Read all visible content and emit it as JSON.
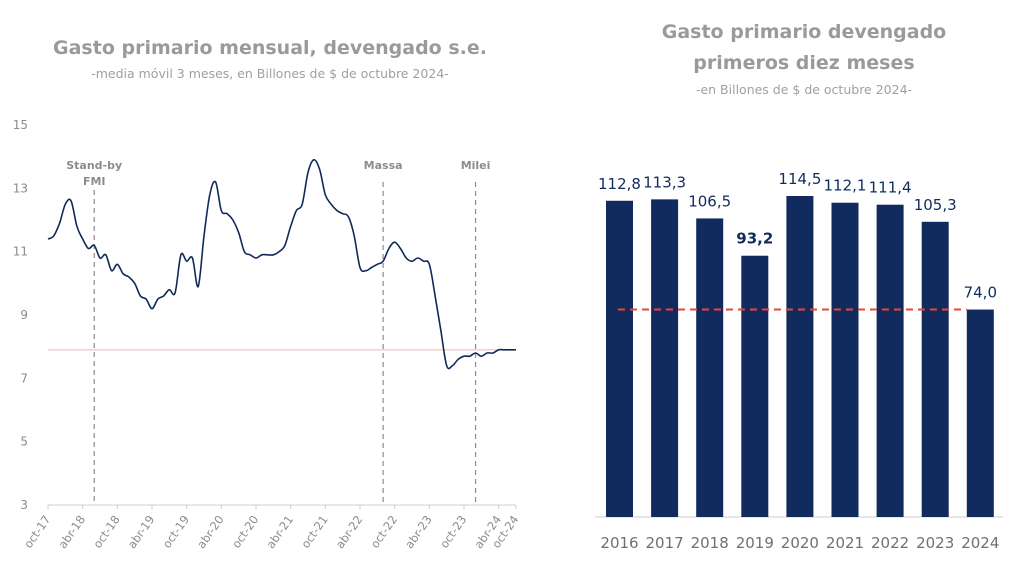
{
  "chart_data": [
    {
      "type": "line",
      "title": "Gasto primario mensual, devengado s.e.",
      "subtitle": "-media móvil 3 meses, en Billones de $ de octubre 2024-",
      "ylim": [
        3,
        15
      ],
      "yticks": [
        "3",
        "5",
        "7",
        "9",
        "11",
        "13",
        "15"
      ],
      "xticks": [
        "oct-17",
        "abr-18",
        "oct-18",
        "abr-19",
        "oct-19",
        "abr-20",
        "oct-20",
        "abr-21",
        "oct-21",
        "abr-22",
        "oct-22",
        "abr-23",
        "oct-23",
        "abr-24",
        "oct-24"
      ],
      "reference_line": 7.9,
      "annotations": [
        {
          "label": "Stand-by",
          "label2": "FMI",
          "x": 8
        },
        {
          "label": "Massa",
          "x": 58
        },
        {
          "label": "Milei",
          "x": 74
        }
      ],
      "series": [
        {
          "name": "Gasto primario mensual",
          "x": [
            0,
            1,
            2,
            3,
            4,
            5,
            6,
            7,
            8,
            9,
            10,
            11,
            12,
            13,
            14,
            15,
            16,
            17,
            18,
            19,
            20,
            21,
            22,
            23,
            24,
            25,
            26,
            27,
            28,
            29,
            30,
            31,
            32,
            33,
            34,
            35,
            36,
            37,
            38,
            39,
            40,
            41,
            42,
            43,
            44,
            45,
            46,
            47,
            48,
            49,
            50,
            51,
            52,
            53,
            54,
            55,
            56,
            57,
            58,
            59,
            60,
            61,
            62,
            63,
            64,
            65,
            66,
            67,
            68,
            69,
            70,
            71,
            72,
            73,
            74,
            75,
            76,
            77,
            78,
            79,
            80,
            81
          ],
          "values": [
            11.4,
            11.5,
            11.9,
            12.5,
            12.6,
            11.8,
            11.4,
            11.1,
            11.2,
            10.8,
            10.9,
            10.4,
            10.6,
            10.3,
            10.2,
            10.0,
            9.6,
            9.5,
            9.2,
            9.5,
            9.6,
            9.8,
            9.7,
            10.9,
            10.7,
            10.8,
            9.9,
            11.5,
            12.8,
            13.2,
            12.3,
            12.2,
            12.0,
            11.6,
            11.0,
            10.9,
            10.8,
            10.9,
            10.9,
            10.9,
            11.0,
            11.2,
            11.8,
            12.3,
            12.5,
            13.5,
            13.9,
            13.6,
            12.8,
            12.5,
            12.3,
            12.2,
            12.1,
            11.5,
            10.5,
            10.4,
            10.5,
            10.6,
            10.7,
            11.1,
            11.3,
            11.1,
            10.8,
            10.7,
            10.8,
            10.7,
            10.6,
            9.6,
            8.5,
            7.4,
            7.4,
            7.6,
            7.7,
            7.7,
            7.8,
            7.7,
            7.8,
            7.8,
            7.9,
            7.9,
            7.9,
            7.9
          ]
        }
      ]
    },
    {
      "type": "bar",
      "title_line1": "Gasto primario devengado",
      "title_line2": "primeros diez meses",
      "subtitle": "-en Billones de $ de octubre 2024-",
      "categories": [
        "2016",
        "2017",
        "2018",
        "2019",
        "2020",
        "2021",
        "2022",
        "2023",
        "2024"
      ],
      "values": [
        112.8,
        113.3,
        106.5,
        93.2,
        114.5,
        112.1,
        111.4,
        105.3,
        74.0
      ],
      "labels": [
        "112,8",
        "113,3",
        "106,5",
        "93,2",
        "114,5",
        "112,1",
        "111,4",
        "105,3",
        "74,0"
      ],
      "bold_label_index": 3,
      "reference_value": 74.0,
      "ylim": [
        0,
        135
      ]
    }
  ],
  "colors": {
    "line": "#0f2a5a",
    "bar": "#122b5e",
    "dashed_vertical": "#8a8a8a",
    "reference_line_left": "#f2b8b0",
    "reference_line_right": "#e8473a",
    "axis_text": "#8c8c8c",
    "annotation_text": "#8c8c8c",
    "value_label": "#122b5e",
    "year_label": "#707070"
  }
}
